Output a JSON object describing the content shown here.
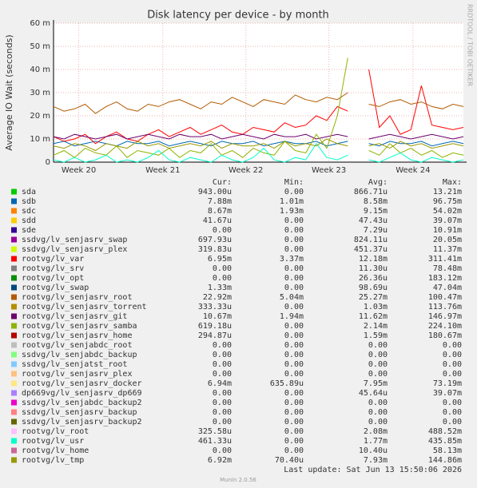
{
  "chart_data": {
    "type": "line",
    "title": "Disk latency per device - by month",
    "y_label": "Average IO Wait (seconds)",
    "side_text": "RRDTOOL / TOBI OETIKER",
    "x": [
      0,
      1,
      2,
      3,
      4,
      5,
      6,
      7,
      8,
      9,
      10,
      11,
      12,
      13,
      14,
      15,
      16,
      17,
      18,
      19,
      20,
      21,
      22,
      23,
      24,
      25,
      26,
      27,
      28,
      29,
      30,
      31,
      32,
      33,
      34,
      35,
      36,
      37,
      38,
      39
    ],
    "xlim": [
      0,
      39
    ],
    "xticks": [
      {
        "value": 2.4,
        "label": "Week 20"
      },
      {
        "value": 10.4,
        "label": "Week 21"
      },
      {
        "value": 18.3,
        "label": "Week 22"
      },
      {
        "value": 26.2,
        "label": "Week 23"
      },
      {
        "value": 34.2,
        "label": "Week 24"
      }
    ],
    "ylim": [
      0,
      60
    ],
    "yticks": [
      0,
      {
        "value": 10,
        "label": "10 m"
      },
      {
        "value": 20,
        "label": "20 m"
      },
      {
        "value": 30,
        "label": "30 m"
      },
      {
        "value": 40,
        "label": "40 m"
      },
      {
        "value": 50,
        "label": "50 m"
      },
      {
        "value": 60,
        "label": "60 m"
      }
    ],
    "grid": true,
    "legend_headers": [
      "Cur:",
      "Min:",
      "Avg:",
      "Max:"
    ],
    "series": [
      {
        "name": "sda",
        "color": "#00cc00",
        "cur": "943.00u",
        "min": "0.00",
        "avg": "866.71u",
        "max": "13.21m"
      },
      {
        "name": "sdb",
        "color": "#0066b3",
        "cur": "7.88m",
        "min": "1.01m",
        "avg": "8.58m",
        "max": "96.75m",
        "values": [
          8,
          9,
          7,
          8,
          9,
          8,
          7,
          9,
          8,
          8,
          9,
          7,
          8,
          9,
          8,
          7,
          9,
          8,
          8,
          9,
          7,
          8,
          9,
          8,
          8,
          9,
          7,
          8,
          9,
          null,
          8,
          7,
          9,
          8,
          8,
          9,
          7,
          8,
          9,
          8
        ]
      },
      {
        "name": "sdc",
        "color": "#ff8000",
        "cur": "8.67m",
        "min": "1.93m",
        "avg": "9.15m",
        "max": "54.02m"
      },
      {
        "name": "sdd",
        "color": "#ffcc00",
        "cur": "41.67u",
        "min": "0.00",
        "avg": "47.43u",
        "max": "39.07m"
      },
      {
        "name": "sde",
        "color": "#330099",
        "cur": "0.00",
        "min": "0.00",
        "avg": "7.29u",
        "max": "10.91m"
      },
      {
        "name": "ssdvg/lv_senjasrv_swap",
        "color": "#990099",
        "cur": "697.93u",
        "min": "0.00",
        "avg": "824.11u",
        "max": "20.05m"
      },
      {
        "name": "ssdvg/lv_senjasrv_plex",
        "color": "#ccff00",
        "cur": "319.83u",
        "min": "0.00",
        "avg": "451.37u",
        "max": "11.37m"
      },
      {
        "name": "rootvg/lv_var",
        "color": "#ff0000",
        "cur": "6.95m",
        "min": "3.37m",
        "avg": "12.18m",
        "max": "311.41m",
        "values": [
          11,
          9,
          10,
          12,
          8,
          11,
          13,
          10,
          9,
          12,
          14,
          11,
          13,
          15,
          12,
          14,
          16,
          13,
          12,
          15,
          14,
          13,
          17,
          15,
          16,
          20,
          18,
          24,
          22,
          null,
          40,
          15,
          20,
          12,
          14,
          33,
          16,
          15,
          14,
          15
        ]
      },
      {
        "name": "rootvg/lv_srv",
        "color": "#808080",
        "cur": "0.00",
        "min": "0.00",
        "avg": "11.30u",
        "max": "78.48m"
      },
      {
        "name": "rootvg/lv_opt",
        "color": "#008f00",
        "cur": "0.00",
        "min": "0.00",
        "avg": "26.36u",
        "max": "183.12m"
      },
      {
        "name": "rootvg/lv_swap",
        "color": "#00487d",
        "cur": "1.33m",
        "min": "0.00",
        "avg": "98.69u",
        "max": "47.04m"
      },
      {
        "name": "rootvg/lv_senjasrv_root",
        "color": "#b35a00",
        "cur": "22.92m",
        "min": "5.04m",
        "avg": "25.27m",
        "max": "100.47m",
        "values": [
          24,
          22,
          23,
          25,
          21,
          24,
          26,
          23,
          22,
          25,
          24,
          26,
          27,
          25,
          23,
          26,
          25,
          28,
          26,
          24,
          27,
          26,
          25,
          29,
          27,
          26,
          28,
          27,
          30,
          null,
          25,
          24,
          26,
          27,
          25,
          26,
          24,
          23,
          25,
          24
        ]
      },
      {
        "name": "rootvg/lv_senjasrv_torrent",
        "color": "#b38f00",
        "cur": "333.33u",
        "min": "0.00",
        "avg": "1.03m",
        "max": "113.76m"
      },
      {
        "name": "rootvg/lv_senjasrv_git",
        "color": "#6b006b",
        "cur": "10.67m",
        "min": "1.94m",
        "avg": "11.62m",
        "max": "146.97m",
        "values": [
          11,
          10,
          12,
          11,
          10,
          11,
          12,
          10,
          11,
          12,
          11,
          10,
          12,
          11,
          11,
          12,
          10,
          11,
          12,
          11,
          10,
          12,
          11,
          11,
          12,
          10,
          11,
          12,
          11,
          null,
          10,
          11,
          12,
          11,
          10,
          11,
          12,
          11,
          10,
          11
        ]
      },
      {
        "name": "rootvg/lv_senjasrv_samba",
        "color": "#8fb300",
        "cur": "619.18u",
        "min": "0.00",
        "avg": "2.14m",
        "max": "224.10m",
        "values": [
          3,
          5,
          2,
          6,
          4,
          3,
          7,
          2,
          5,
          4,
          3,
          6,
          2,
          5,
          4,
          8,
          3,
          5,
          2,
          6,
          4,
          3,
          9,
          5,
          4,
          12,
          6,
          20,
          45,
          null,
          5,
          3,
          8,
          4,
          6,
          3,
          5,
          2,
          4,
          3
        ]
      },
      {
        "name": "rootvg/lv_senjasrv_home",
        "color": "#b30000",
        "cur": "294.87u",
        "min": "0.00",
        "avg": "1.59m",
        "max": "180.67m"
      },
      {
        "name": "rootvg/lv_senjabdc_root",
        "color": "#bebebe",
        "cur": "0.00",
        "min": "0.00",
        "avg": "0.00",
        "max": "0.00"
      },
      {
        "name": "ssdvg/lv_senjabdc_backup",
        "color": "#80ff80",
        "cur": "0.00",
        "min": "0.00",
        "avg": "0.00",
        "max": "0.00"
      },
      {
        "name": "ssdvg/lv_senjatst_root",
        "color": "#80c9ff",
        "cur": "0.00",
        "min": "0.00",
        "avg": "0.00",
        "max": "0.00"
      },
      {
        "name": "rootvg/lv_senjasrv_plex",
        "color": "#ffc080",
        "cur": "0.00",
        "min": "0.00",
        "avg": "0.00",
        "max": "0.00"
      },
      {
        "name": "rootvg/lv_senjasrv_docker",
        "color": "#ffe680",
        "cur": "6.94m",
        "min": "635.89u",
        "avg": "7.95m",
        "max": "73.19m"
      },
      {
        "name": "dp669vg/lv_senjasrv_dp669",
        "color": "#aa80ff",
        "cur": "0.00",
        "min": "0.00",
        "avg": "45.64u",
        "max": "39.07m"
      },
      {
        "name": "ssdvg/lv_senjabdc_backup2",
        "color": "#ee00cc",
        "cur": "0.00",
        "min": "0.00",
        "avg": "0.00",
        "max": "0.00"
      },
      {
        "name": "ssdvg/lv_senjasrv_backup",
        "color": "#ff8080",
        "cur": "0.00",
        "min": "0.00",
        "avg": "0.00",
        "max": "0.00"
      },
      {
        "name": "ssdvg/lv_senjasrv_backup2",
        "color": "#666600",
        "cur": "0.00",
        "min": "0.00",
        "avg": "0.00",
        "max": "0.00"
      },
      {
        "name": "rootvg/lv_root",
        "color": "#ffbfff",
        "cur": "325.58u",
        "min": "0.00",
        "avg": "2.08m",
        "max": "488.52m"
      },
      {
        "name": "rootvg/lv_usr",
        "color": "#00ffcc",
        "cur": "461.33u",
        "min": "0.00",
        "avg": "1.77m",
        "max": "435.85m",
        "values": [
          1,
          0,
          2,
          0,
          1,
          3,
          0,
          1,
          0,
          2,
          5,
          1,
          0,
          2,
          1,
          0,
          3,
          1,
          0,
          2,
          6,
          1,
          0,
          2,
          1,
          8,
          2,
          1,
          3,
          null,
          1,
          0,
          2,
          4,
          1,
          0,
          2,
          1,
          0,
          1
        ]
      },
      {
        "name": "rootvg/lv_home",
        "color": "#cc6699",
        "cur": "0.00",
        "min": "0.00",
        "avg": "10.40u",
        "max": "58.13m"
      },
      {
        "name": "rootvg/lv_tmp",
        "color": "#999900",
        "cur": "6.92m",
        "min": "70.40u",
        "avg": "7.93m",
        "max": "144.86m",
        "values": [
          7,
          6,
          8,
          7,
          5,
          8,
          7,
          6,
          9,
          7,
          8,
          6,
          7,
          8,
          7,
          9,
          6,
          8,
          7,
          7,
          8,
          6,
          9,
          7,
          8,
          7,
          10,
          8,
          7,
          null,
          7,
          8,
          6,
          9,
          7,
          8,
          6,
          7,
          8,
          7
        ]
      }
    ],
    "last_update": "Last update: Sat Jun 13 15:50:06 2026",
    "footer": "Munin 2.0.56"
  }
}
